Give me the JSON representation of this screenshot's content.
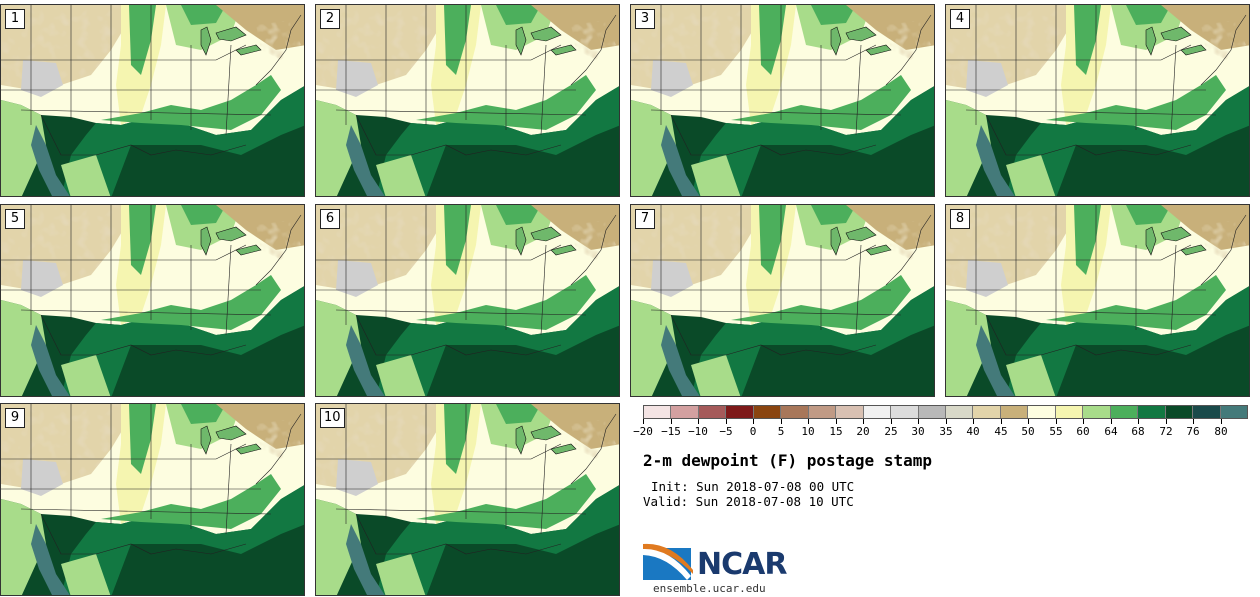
{
  "panels": [
    {
      "label": "1"
    },
    {
      "label": "2"
    },
    {
      "label": "3"
    },
    {
      "label": "4"
    },
    {
      "label": "5"
    },
    {
      "label": "6"
    },
    {
      "label": "7"
    },
    {
      "label": "8"
    },
    {
      "label": "9"
    },
    {
      "label": "10"
    }
  ],
  "colorbar": {
    "colors": [
      "#f4e4e4",
      "#d3a0a0",
      "#a55a5a",
      "#7e1a1a",
      "#8a4510",
      "#a8775a",
      "#c09a85",
      "#d8c0b2",
      "#f0f0f0",
      "#dcdcdc",
      "#b8b8b8",
      "#d8d8c8",
      "#e2d4aa",
      "#c8b07a",
      "#fdfde0",
      "#f5f5b0",
      "#a8dc8a",
      "#4caf5c",
      "#127842",
      "#0a4a28",
      "#1a4a4a",
      "#447a7a"
    ],
    "tick_labels": [
      "−20",
      "−15",
      "−10",
      "−5",
      "0",
      "5",
      "10",
      "15",
      "20",
      "25",
      "30",
      "35",
      "40",
      "45",
      "50",
      "55",
      "60",
      "64",
      "68",
      "72",
      "76",
      "80"
    ]
  },
  "title": "2-m dewpoint (F) postage stamp",
  "init": "Init: Sun 2018-07-08 00 UTC",
  "valid": "Valid: Sun 2018-07-08 10 UTC",
  "logo": {
    "text": "NCAR"
  },
  "url": "ensemble.ucar.edu"
}
